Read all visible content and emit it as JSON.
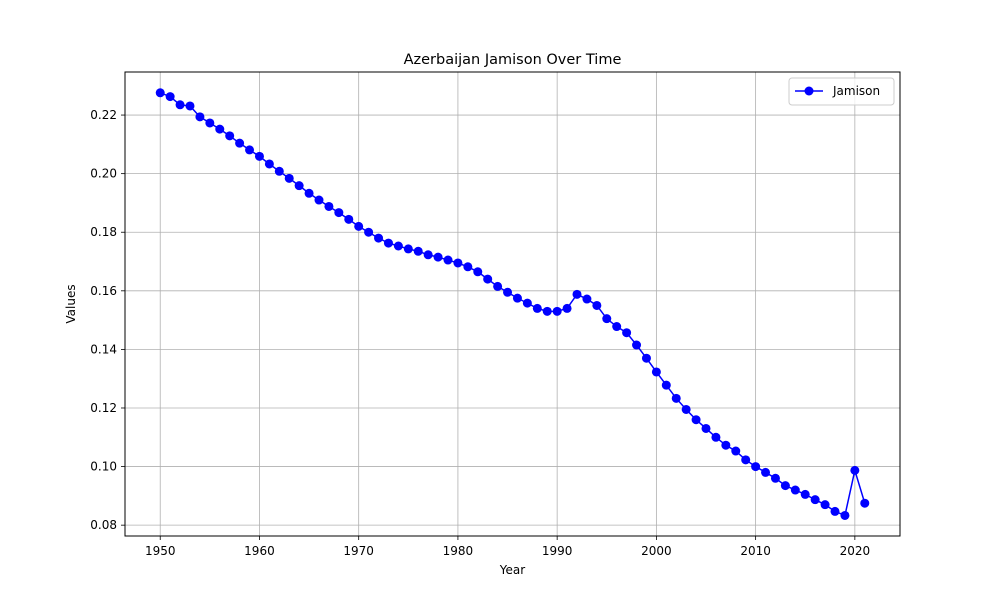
{
  "chart_data": {
    "type": "line",
    "title": "Azerbaijan Jamison Over Time",
    "xlabel": "Year",
    "ylabel": "Values",
    "xlim": [
      1946.45,
      2024.55
    ],
    "ylim": [
      0.0763,
      0.2347
    ],
    "xticks": [
      1950,
      1960,
      1970,
      1980,
      1990,
      2000,
      2010,
      2020
    ],
    "xtick_labels": [
      "1950",
      "1960",
      "1970",
      "1980",
      "1990",
      "2000",
      "2010",
      "2020"
    ],
    "yticks": [
      0.08,
      0.1,
      0.12,
      0.14,
      0.16,
      0.18,
      0.2,
      0.22
    ],
    "ytick_labels": [
      "0.08",
      "0.10",
      "0.12",
      "0.14",
      "0.16",
      "0.18",
      "0.20",
      "0.22"
    ],
    "grid": true,
    "legend_position": "top-right",
    "series": [
      {
        "name": "Jamison",
        "color": "#0000ff",
        "marker": "circle",
        "x": [
          1950,
          1951,
          1952,
          1953,
          1954,
          1955,
          1956,
          1957,
          1958,
          1959,
          1960,
          1961,
          1962,
          1963,
          1964,
          1965,
          1966,
          1967,
          1968,
          1969,
          1970,
          1971,
          1972,
          1973,
          1974,
          1975,
          1976,
          1977,
          1978,
          1979,
          1980,
          1981,
          1982,
          1983,
          1984,
          1985,
          1986,
          1987,
          1988,
          1989,
          1990,
          1991,
          1992,
          1993,
          1994,
          1995,
          1996,
          1997,
          1998,
          1999,
          2000,
          2001,
          2002,
          2003,
          2004,
          2005,
          2006,
          2007,
          2008,
          2009,
          2010,
          2011,
          2012,
          2013,
          2014,
          2015,
          2016,
          2017,
          2018,
          2019,
          2020,
          2021
        ],
        "values": [
          0.2276,
          0.2263,
          0.2235,
          0.2231,
          0.2194,
          0.2173,
          0.2152,
          0.2129,
          0.2104,
          0.2081,
          0.2059,
          0.2033,
          0.2008,
          0.1984,
          0.1959,
          0.1933,
          0.191,
          0.1888,
          0.1867,
          0.1844,
          0.182,
          0.18,
          0.178,
          0.1763,
          0.1753,
          0.1743,
          0.1735,
          0.1723,
          0.1715,
          0.1705,
          0.1695,
          0.1682,
          0.1665,
          0.164,
          0.1615,
          0.1595,
          0.1575,
          0.1558,
          0.154,
          0.153,
          0.153,
          0.154,
          0.1588,
          0.1572,
          0.155,
          0.1505,
          0.1478,
          0.1457,
          0.1415,
          0.137,
          0.1323,
          0.1278,
          0.1233,
          0.1195,
          0.116,
          0.113,
          0.11,
          0.1073,
          0.1053,
          0.1023,
          0.1,
          0.098,
          0.096,
          0.0935,
          0.092,
          0.0905,
          0.0887,
          0.087,
          0.0847,
          0.0833,
          0.0987,
          0.0875
        ]
      }
    ]
  }
}
